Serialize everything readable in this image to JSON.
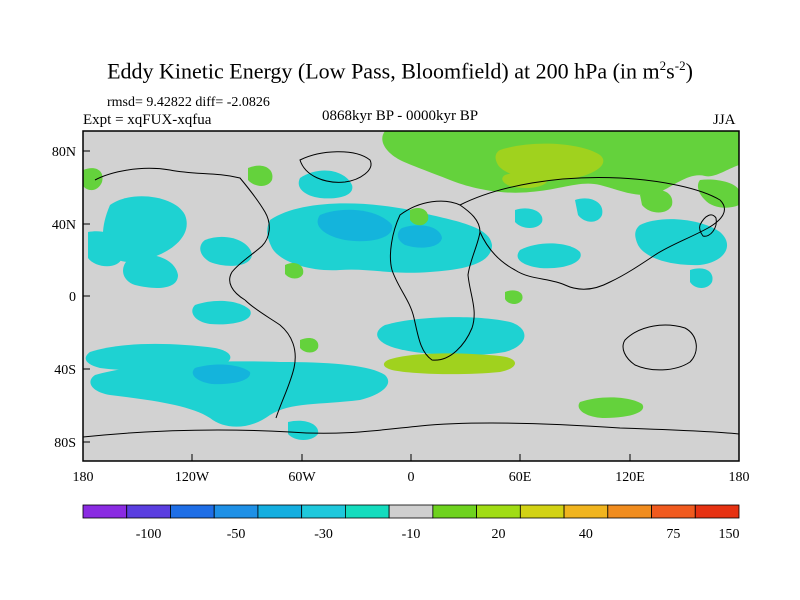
{
  "title": {
    "main": "Eddy Kinetic Energy (Low Pass, Bloomfield) at 200 hPa (in m",
    "sup1": "2",
    "mid": "s",
    "sup2": "-2",
    "end": ")"
  },
  "stats": "rmsd= 9.42822 diff= -2.0826",
  "expt": "Expt = xqFUX-xqfua",
  "period": "0868kyr BP - 0000kyr BP",
  "season": "JJA",
  "axes": {
    "x_ticks": [
      "180",
      "120W",
      "60W",
      "0",
      "60E",
      "120E",
      "180"
    ],
    "y_ticks": [
      "80N",
      "40N",
      "0",
      "40S",
      "80S"
    ]
  },
  "colorbar": {
    "colors": [
      "#8a2be2",
      "#5a3ee0",
      "#1e6ee6",
      "#1e90e6",
      "#14aee0",
      "#1ec8dc",
      "#14dcbe",
      "#cfcfcf",
      "#6ed21e",
      "#a0dc14",
      "#d2d214",
      "#f0b41e",
      "#f08c1e",
      "#f05a1e",
      "#e63212"
    ],
    "labels": [
      "-100",
      "-50",
      "-30",
      "-10",
      "20",
      "40",
      "75",
      "150"
    ]
  },
  "colors": {
    "land_neutral": "#d2d2d2",
    "cyan": "#1ed2d2",
    "cyan_dark": "#14b4dc",
    "green": "#64d23c",
    "yellow_green": "#a0d21e"
  }
}
